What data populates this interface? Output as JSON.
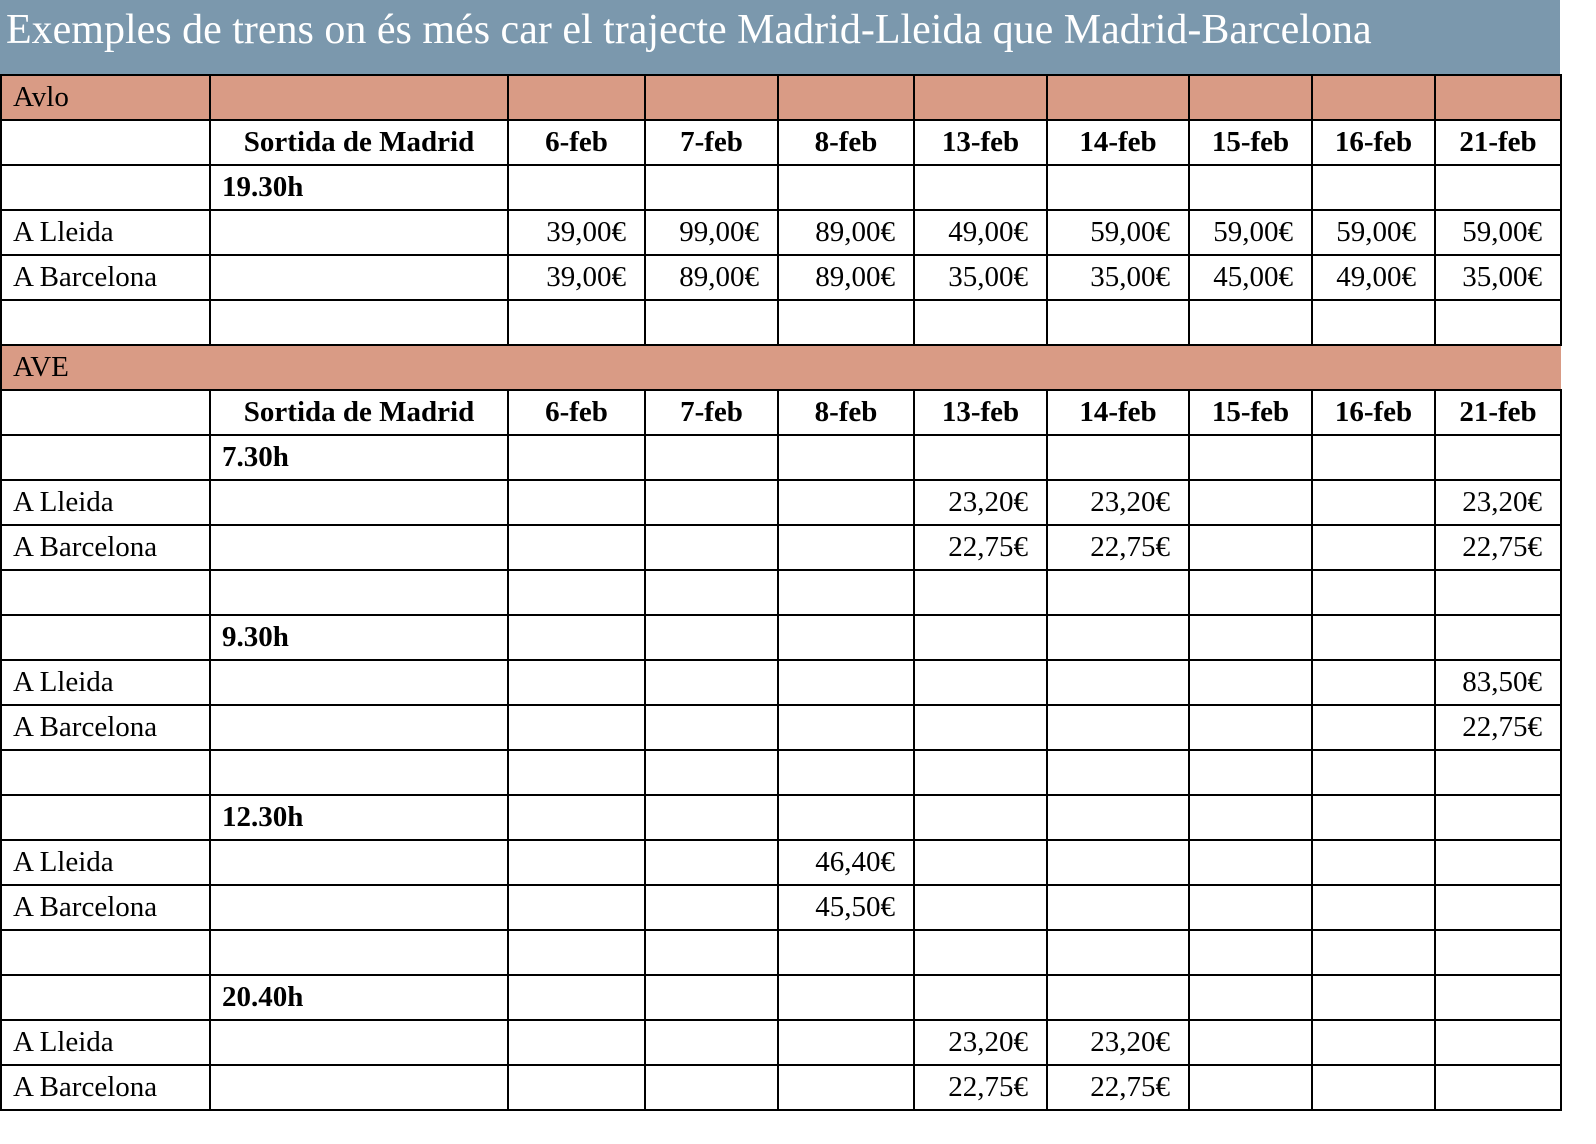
{
  "title": "Exemples de trens on és més car el trajecte Madrid-Lleida que Madrid-Barcelona",
  "colors": {
    "title_bg": "#7b98ad",
    "section_bg": "#d99b85"
  },
  "header": {
    "departure_label": "Sortida de Madrid",
    "dates": [
      "6-feb",
      "7-feb",
      "8-feb",
      "13-feb",
      "14-feb",
      "15-feb",
      "16-feb",
      "21-feb"
    ]
  },
  "avlo": {
    "name": "Avlo",
    "departures": [
      {
        "time": "19.30h",
        "lleida": {
          "label": "A Lleida",
          "prices": [
            "39,00€",
            "99,00€",
            "89,00€",
            "49,00€",
            "59,00€",
            "59,00€",
            "59,00€",
            "59,00€"
          ]
        },
        "barcelona": {
          "label": "A Barcelona",
          "prices": [
            "39,00€",
            "89,00€",
            "89,00€",
            "35,00€",
            "35,00€",
            "45,00€",
            "49,00€",
            "35,00€"
          ]
        }
      }
    ]
  },
  "ave": {
    "name": "AVE",
    "departures": [
      {
        "time": "7.30h",
        "lleida": {
          "label": "A Lleida",
          "prices": [
            "",
            "",
            "",
            "23,20€",
            "23,20€",
            "",
            "",
            "23,20€"
          ]
        },
        "barcelona": {
          "label": "A Barcelona",
          "prices": [
            "",
            "",
            "",
            "22,75€",
            "22,75€",
            "",
            "",
            "22,75€"
          ]
        }
      },
      {
        "time": "9.30h",
        "lleida": {
          "label": "A Lleida",
          "prices": [
            "",
            "",
            "",
            "",
            "",
            "",
            "",
            "83,50€"
          ]
        },
        "barcelona": {
          "label": "A Barcelona",
          "prices": [
            "",
            "",
            "",
            "",
            "",
            "",
            "",
            "22,75€"
          ]
        }
      },
      {
        "time": "12.30h",
        "lleida": {
          "label": "A Lleida",
          "prices": [
            "",
            "",
            "46,40€",
            "",
            "",
            "",
            "",
            ""
          ]
        },
        "barcelona": {
          "label": "A Barcelona",
          "prices": [
            "",
            "",
            "45,50€",
            "",
            "",
            "",
            "",
            ""
          ]
        }
      },
      {
        "time": "20.40h",
        "lleida": {
          "label": "A Lleida",
          "prices": [
            "",
            "",
            "",
            "23,20€",
            "23,20€",
            "",
            "",
            ""
          ]
        },
        "barcelona": {
          "label": "A Barcelona",
          "prices": [
            "",
            "",
            "",
            "22,75€",
            "22,75€",
            "",
            "",
            ""
          ]
        }
      }
    ]
  }
}
